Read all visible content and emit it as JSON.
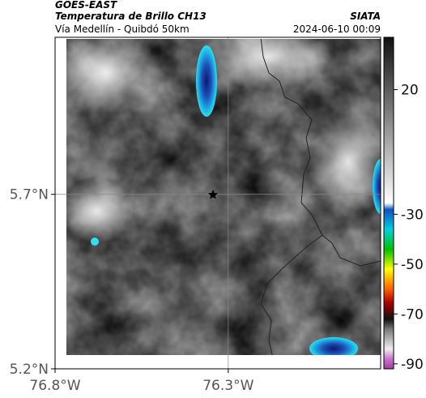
{
  "header": {
    "title": "GOES-EAST",
    "subtitle": "Temperatura de Brillo CH13",
    "source": "SIATA",
    "region": "Vía Medellín - Quibdó 50km",
    "timestamp": "2024-06-10 00:09"
  },
  "map": {
    "xlim": [
      -76.8,
      -75.86
    ],
    "ylim": [
      5.2,
      6.15
    ],
    "xticks": [
      {
        "value": -76.8,
        "label": "76.8°W"
      },
      {
        "value": -76.3,
        "label": "76.3°W"
      }
    ],
    "yticks": [
      {
        "value": 5.2,
        "label": "5.2°N"
      },
      {
        "value": 5.7,
        "label": "5.7°N"
      }
    ]
  },
  "colorbar": {
    "lim": [
      -92,
      41
    ],
    "ticks": [
      20,
      -30,
      -50,
      -70,
      -90
    ]
  }
}
